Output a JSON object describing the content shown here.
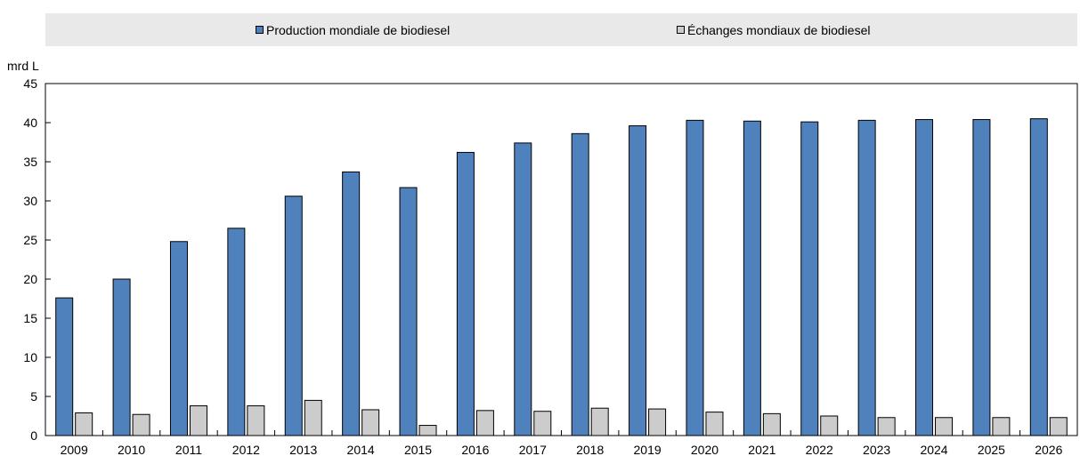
{
  "chart_data": {
    "type": "bar",
    "ylabel": "mrd L",
    "ylim": [
      0,
      45
    ],
    "yticks": [
      0,
      5,
      10,
      15,
      20,
      25,
      30,
      35,
      40,
      45
    ],
    "legend_position": "top",
    "grid": false,
    "categories": [
      "2009",
      "2010",
      "2011",
      "2012",
      "2013",
      "2014",
      "2015",
      "2016",
      "2017",
      "2018",
      "2019",
      "2020",
      "2021",
      "2022",
      "2023",
      "2024",
      "2025",
      "2026"
    ],
    "series": [
      {
        "name": "Production mondiale de biodiesel",
        "color": "#4f81bd",
        "values": [
          17.6,
          20.0,
          24.8,
          26.5,
          30.6,
          33.7,
          31.7,
          36.2,
          37.4,
          38.6,
          39.6,
          40.3,
          40.2,
          40.1,
          40.3,
          40.4,
          40.4,
          40.5
        ]
      },
      {
        "name": "Échanges mondiaux de biodiesel",
        "color": "#cccccc",
        "values": [
          2.9,
          2.7,
          3.8,
          3.8,
          4.5,
          3.3,
          1.3,
          3.2,
          3.1,
          3.5,
          3.4,
          3.0,
          2.8,
          2.5,
          2.3,
          2.3,
          2.3,
          2.3
        ]
      }
    ]
  }
}
